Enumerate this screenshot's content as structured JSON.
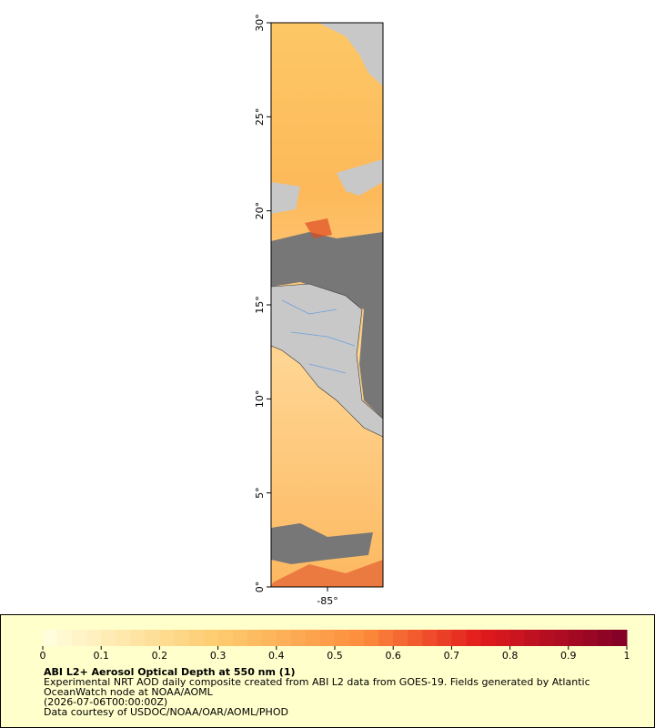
{
  "map": {
    "lat_labels": [
      "30°",
      "25°",
      "20°",
      "15°",
      "10°",
      "5°",
      "0°"
    ],
    "lon_labels": [
      "-85°"
    ]
  },
  "colorbar": {
    "tick_labels": [
      "0",
      "0.1",
      "0.2",
      "0.3",
      "0.4",
      "0.5",
      "0.6",
      "0.7",
      "0.8",
      "0.9",
      "1"
    ]
  },
  "legend": {
    "title": "ABI L2+ Aerosol Optical Depth at 550 nm (1)",
    "lines": [
      "Experimental NRT AOD daily composite created from ABI L2 data from GOES-19. Fields generated by Atlantic",
      "OceanWatch node at NOAA/AOML",
      "(2026-07-06T00:00:00Z)",
      "Data courtesy of USDOC/NOAA/OAR/AOML/PHOD"
    ]
  }
}
